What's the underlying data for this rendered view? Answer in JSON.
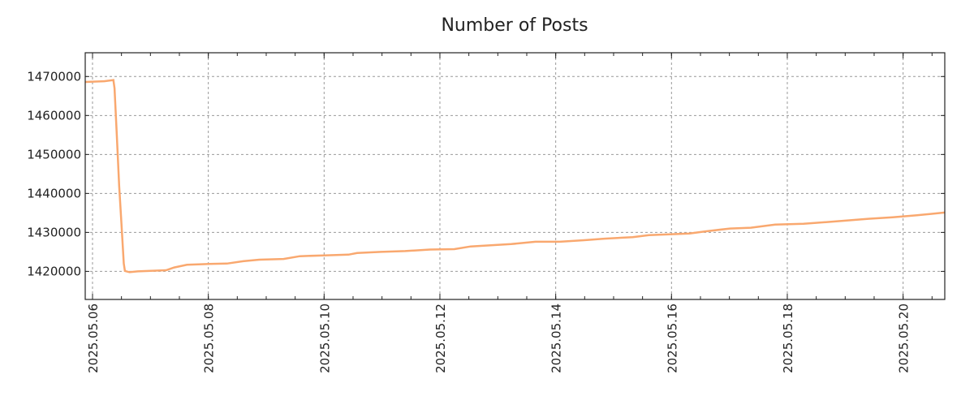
{
  "chart_data": {
    "type": "line",
    "title": "Number of Posts",
    "xlabel": "",
    "ylabel": "",
    "x_unit": "day of May 2025",
    "xlim": [
      5.874,
      20.72
    ],
    "ylim": [
      1412800,
      1476100
    ],
    "grid": true,
    "line_color": "#f9a86f",
    "x_ticks": [
      {
        "value": 6,
        "label": "2025.05.06"
      },
      {
        "value": 8,
        "label": "2025.05.08"
      },
      {
        "value": 10,
        "label": "2025.05.10"
      },
      {
        "value": 12,
        "label": "2025.05.12"
      },
      {
        "value": 14,
        "label": "2025.05.14"
      },
      {
        "value": 16,
        "label": "2025.05.16"
      },
      {
        "value": 18,
        "label": "2025.05.18"
      },
      {
        "value": 20,
        "label": "2025.05.20"
      }
    ],
    "y_ticks": [
      {
        "value": 1420000,
        "label": "1420000"
      },
      {
        "value": 1430000,
        "label": "1430000"
      },
      {
        "value": 1440000,
        "label": "1440000"
      },
      {
        "value": 1450000,
        "label": "1450000"
      },
      {
        "value": 1460000,
        "label": "1460000"
      },
      {
        "value": 1470000,
        "label": "1470000"
      }
    ],
    "series": [
      {
        "name": "Number of Posts",
        "x": [
          5.874,
          6.2,
          6.36,
          6.38,
          6.42,
          6.46,
          6.5,
          6.54,
          6.56,
          6.64,
          6.78,
          7.27,
          7.41,
          7.63,
          8.0,
          8.32,
          8.6,
          8.88,
          9.3,
          9.58,
          10.0,
          10.42,
          10.57,
          10.98,
          11.4,
          11.83,
          12.25,
          12.53,
          13.23,
          13.65,
          14.07,
          14.49,
          14.84,
          15.33,
          15.61,
          16.31,
          16.6,
          17.01,
          17.37,
          17.79,
          18.28,
          18.98,
          19.4,
          19.82,
          20.24,
          20.72
        ],
        "y": [
          1468600,
          1468800,
          1469100,
          1467000,
          1455000,
          1442000,
          1432000,
          1422000,
          1420100,
          1419800,
          1420000,
          1420300,
          1421000,
          1421700,
          1421900,
          1422000,
          1422600,
          1423000,
          1423200,
          1423900,
          1424100,
          1424300,
          1424700,
          1425000,
          1425200,
          1425600,
          1425700,
          1426400,
          1427000,
          1427600,
          1427600,
          1428000,
          1428400,
          1428800,
          1429300,
          1429700,
          1430300,
          1431000,
          1431200,
          1432000,
          1432200,
          1433000,
          1433500,
          1433900,
          1434400,
          1435100
        ]
      }
    ]
  }
}
